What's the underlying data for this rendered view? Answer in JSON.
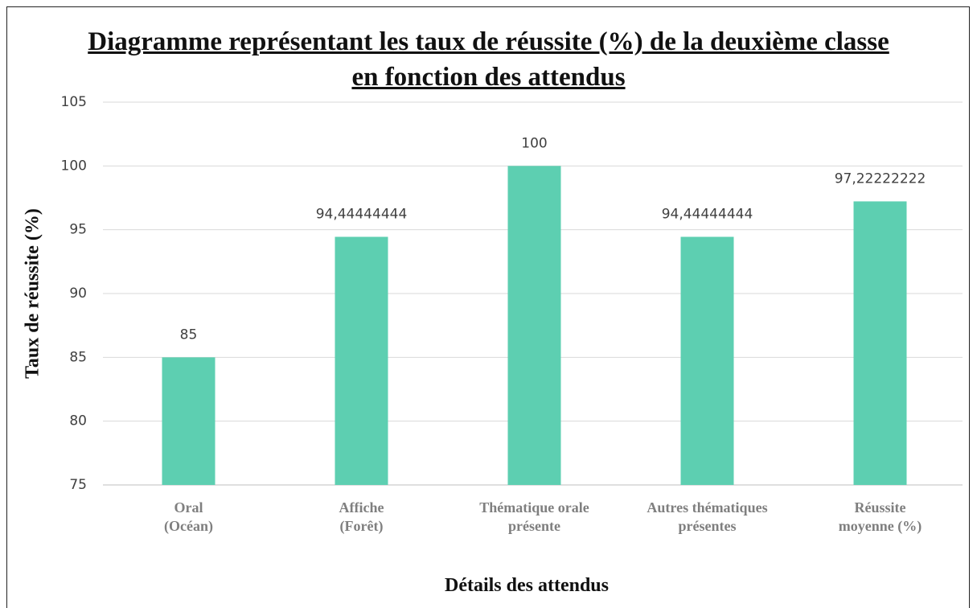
{
  "chart_data": {
    "type": "bar",
    "title": "Diagramme représentant les taux de réussite (%) de la deuxième classe en fonction des attendus",
    "x_label": "Détails des attendus",
    "y_label": "Taux de réussite (%)",
    "categories": [
      "Oral\n(Océan)",
      "Affiche\n(Forêt)",
      "Thématique orale\nprésente",
      "Autres thématiques\nprésentes",
      "Réussite\nmoyenne (%)"
    ],
    "values": [
      85,
      94.44444444,
      100,
      94.44444444,
      97.22222222
    ],
    "value_labels": [
      "85",
      "94,44444444",
      "100",
      "94,44444444",
      "97,22222222"
    ],
    "color": "#5dcfb1",
    "ylim": [
      75,
      105
    ],
    "yticks": [
      75,
      80,
      85,
      90,
      95,
      100,
      105
    ],
    "grid": true
  }
}
